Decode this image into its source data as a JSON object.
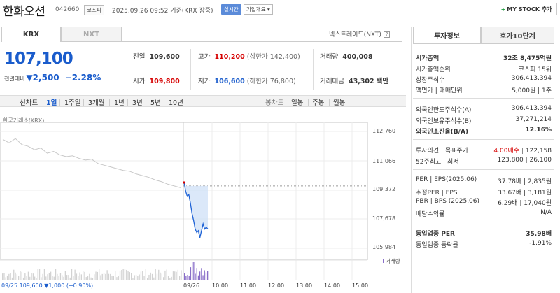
{
  "header": {
    "stock_name": "한화오션",
    "stock_code": "042660",
    "market": "코스피",
    "datetime": "2025.09.26 09:52 기준(KRX 장중)",
    "realtime": "실시간",
    "company_overview": "기업개요 ▾",
    "mystock": "MY STOCK 추가"
  },
  "tabs": {
    "krx": "KRX",
    "nxt": "NXT",
    "nxt_link": "넥스트레이드(NXT)"
  },
  "price": {
    "current": "107,100",
    "change_label": "전일대비",
    "change_amount": "▼2,500",
    "change_pct": "−2.28%"
  },
  "stats": {
    "prev_close": {
      "label": "전일",
      "value": "109,600"
    },
    "open": {
      "label": "시가",
      "value": "109,800"
    },
    "high": {
      "label": "고가",
      "value": "110,200",
      "sub": "(상한가 142,400)"
    },
    "low": {
      "label": "저가",
      "value": "106,600",
      "sub": "(하한가 76,800)"
    },
    "volume": {
      "label": "거래량",
      "value": "400,008"
    },
    "amount": {
      "label": "거래대금",
      "value": "43,302",
      "unit": "백만"
    }
  },
  "period": {
    "line_label": "선차트",
    "items": [
      "1일",
      "1주일",
      "3개월",
      "1년",
      "3년",
      "5년",
      "10년"
    ],
    "selected": "1일",
    "candle_label": "봉차트",
    "candle_items": [
      "일봉",
      "주봉",
      "월봉"
    ]
  },
  "chart_data": {
    "type": "line",
    "source": "한국거래소(KRX)",
    "y_ticks": [
      "112,760",
      "111,066",
      "109,372",
      "107,678",
      "105,984"
    ],
    "ylim": [
      105984,
      112760
    ],
    "x_ticks": [
      "09/26",
      "10:00",
      "11:00",
      "12:00",
      "13:00",
      "14:00",
      "15:00"
    ],
    "prev_day_label": "09/25",
    "prev_close": 109600,
    "series": [
      {
        "values": [
          112300,
          112100,
          112350,
          112000,
          111900,
          111700,
          111800,
          111500,
          111600,
          111400,
          111300,
          111350,
          111200,
          111100,
          111150,
          110900,
          110800,
          110700,
          110600,
          110500,
          110450,
          110300,
          110200,
          110100,
          109950,
          109850,
          109700,
          109600,
          109500
        ]
      },
      {
        "values": [
          109800,
          109300,
          109000,
          109100,
          108600,
          108000,
          107600,
          107100,
          106900,
          107000,
          106600,
          107000,
          107400,
          107100,
          107200,
          107100
        ]
      }
    ],
    "volume_label": "거래량"
  },
  "footer": {
    "prev_info": "09/25  109,600 ▼1,000 (−0.90%)"
  },
  "right_panel": {
    "tab_invest": "투자정보",
    "tab_quote": "호가10단계",
    "rows1": [
      {
        "label": "시가총액",
        "value": "32조 8,475억원",
        "bold": true
      },
      {
        "label": "시가총액순위",
        "value": "코스피 15위"
      },
      {
        "label": "상장주식수",
        "value": "306,413,394"
      },
      {
        "label": "액면가 | 매매단위",
        "value": "5,000원 | 1주"
      }
    ],
    "rows2": [
      {
        "label": "외국인한도주식수(A)",
        "value": "306,413,394"
      },
      {
        "label": "외국인보유주식수(B)",
        "value": "37,271,214"
      },
      {
        "label": "외국인소진율(B/A)",
        "value": "12.16%",
        "bold": true
      }
    ],
    "rows3": [
      {
        "label": "투자의견 | 목표주가",
        "value_red": "4.00매수",
        "value": "122,158"
      },
      {
        "label": "52주최고 | 최저",
        "value": "123,800 | 26,100"
      }
    ],
    "rows4": [
      {
        "label": "PER | EPS(2025.06)",
        "value": "37.78배 | 2,835원"
      },
      {
        "label": "추정PER | EPS",
        "value": "33.67배 | 3,181원"
      },
      {
        "label": "PBR | BPS (2025.06)",
        "value": "6.29배 | 17,040원"
      },
      {
        "label": "배당수익률",
        "value": "N/A"
      }
    ],
    "rows5": [
      {
        "label": "동일업종 PER",
        "value": "35.98배",
        "bold": true
      },
      {
        "label": "동일업종 등락률",
        "value": "-1.91%",
        "blue": true
      }
    ]
  }
}
